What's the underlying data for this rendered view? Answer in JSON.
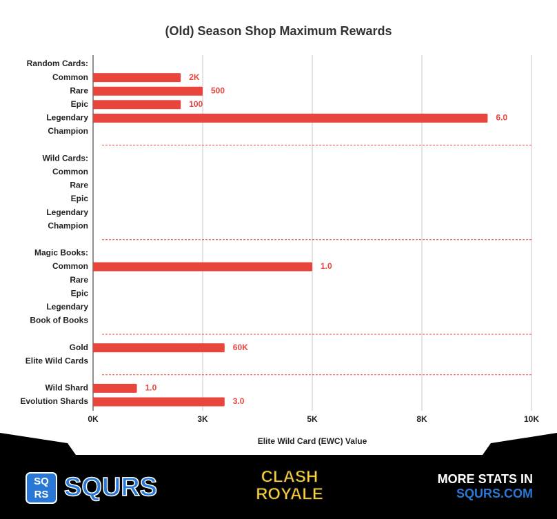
{
  "chart_data": {
    "type": "barh",
    "title": "(Old) Season Shop Maximum Rewards",
    "xlabel": "Elite Wild Card (EWC) Value",
    "color": "#e8453c",
    "categories": [
      "Random Cards:",
      "Common",
      "Rare",
      "Epic",
      "Legendary",
      "Champion",
      null,
      "Wild Cards:",
      "Common",
      "Rare",
      "Epic",
      "Legendary",
      "Champion",
      null,
      "Magic Books:",
      "Common",
      "Rare",
      "Epic",
      "Legendary",
      "Book of Books",
      null,
      "Gold",
      "Elite Wild Cards",
      null,
      "Wild Shard",
      "Evolution Shards"
    ],
    "values": [
      null,
      2000,
      2500,
      2000,
      9000,
      null,
      null,
      null,
      null,
      null,
      null,
      null,
      null,
      null,
      null,
      5000,
      null,
      null,
      null,
      null,
      null,
      3000,
      null,
      null,
      1000,
      3000
    ],
    "quantity_labels": [
      null,
      "2K",
      "500",
      "100",
      "6.0",
      null,
      null,
      null,
      null,
      null,
      null,
      null,
      null,
      null,
      null,
      "1.0",
      null,
      null,
      null,
      null,
      null,
      "60K",
      null,
      null,
      "1.0",
      "3.0"
    ],
    "xlim": [
      0,
      10000
    ],
    "xticks": [
      {
        "value": 0,
        "label": "0K"
      },
      {
        "value": 2500,
        "label": "3K"
      },
      {
        "value": 5000,
        "label": "5K"
      },
      {
        "value": 7500,
        "label": "8K"
      },
      {
        "value": 10000,
        "label": "10K"
      }
    ],
    "grid": true
  },
  "footer": {
    "logo_letters": [
      "SQ",
      "RS"
    ],
    "brand": "SQURS",
    "game_line1": "CLASH",
    "game_line2": "ROYALE",
    "promo_line1": "MORE STATS IN",
    "promo_line2": "SQURS.COM"
  }
}
